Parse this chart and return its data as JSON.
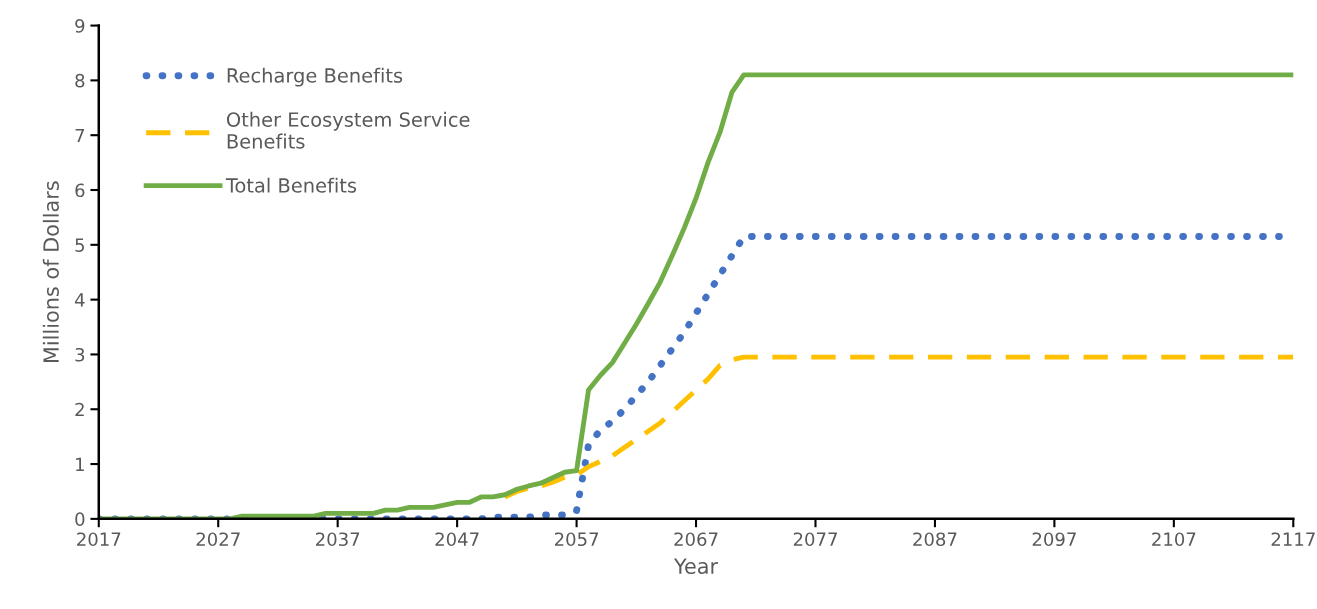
{
  "chart_data": {
    "type": "line",
    "xlabel": "Year",
    "ylabel": "Millions of Dollars",
    "xlim": [
      2017,
      2117
    ],
    "xticks": [
      2017,
      2027,
      2037,
      2047,
      2057,
      2067,
      2077,
      2087,
      2097,
      2107,
      2117
    ],
    "ylim": [
      0,
      9
    ],
    "yticks": [
      0,
      1,
      2,
      3,
      4,
      5,
      6,
      7,
      8,
      9
    ],
    "grid": false,
    "legend": "top left",
    "marker": "none",
    "series": [
      {
        "name": "Recharge Benefits",
        "color": "#4472c4",
        "line_style": "dotted",
        "x": [
          2017,
          2049,
          2050,
          2053,
          2054,
          2056,
          2057,
          2058,
          2059,
          2060,
          2061,
          2062,
          2063,
          2064,
          2065,
          2066,
          2067,
          2068,
          2069,
          2070,
          2071,
          2117
        ],
        "values": [
          0,
          0,
          0.03,
          0.03,
          0.07,
          0.07,
          0.15,
          1.35,
          1.62,
          1.78,
          2.0,
          2.25,
          2.5,
          2.8,
          3.1,
          3.4,
          3.75,
          4.1,
          4.45,
          4.8,
          5.15,
          5.15
        ]
      },
      {
        "name": "Other Ecosystem Service Benefits",
        "color": "#ffc000",
        "line_style": "dashed",
        "x": [
          2051,
          2052,
          2053,
          2054,
          2055,
          2056,
          2057,
          2058,
          2059,
          2060,
          2061,
          2062,
          2063,
          2064,
          2065,
          2066,
          2067,
          2068,
          2069,
          2070,
          2071,
          2117
        ],
        "values": [
          0.4,
          0.5,
          0.56,
          0.6,
          0.67,
          0.76,
          0.8,
          0.95,
          1.05,
          1.15,
          1.3,
          1.45,
          1.6,
          1.75,
          1.95,
          2.15,
          2.35,
          2.55,
          2.8,
          2.9,
          2.95,
          2.95
        ]
      },
      {
        "name": "Total Benefits",
        "color": "#70ad47",
        "line_style": "solid",
        "x": [
          2017,
          2028,
          2029,
          2035,
          2036,
          2040,
          2041,
          2042,
          2043,
          2045,
          2047,
          2048,
          2049,
          2050,
          2051,
          2052,
          2053,
          2054,
          2055,
          2056,
          2057,
          2058,
          2059,
          2060,
          2061,
          2062,
          2063,
          2064,
          2065,
          2066,
          2067,
          2068,
          2069,
          2070,
          2071,
          2117
        ],
        "values": [
          0,
          0,
          0.05,
          0.05,
          0.1,
          0.1,
          0.16,
          0.16,
          0.21,
          0.21,
          0.3,
          0.3,
          0.4,
          0.4,
          0.44,
          0.54,
          0.6,
          0.65,
          0.75,
          0.85,
          0.88,
          2.35,
          2.62,
          2.85,
          3.2,
          3.55,
          3.93,
          4.32,
          4.8,
          5.3,
          5.85,
          6.5,
          7.05,
          7.78,
          8.1,
          8.1
        ]
      }
    ]
  }
}
